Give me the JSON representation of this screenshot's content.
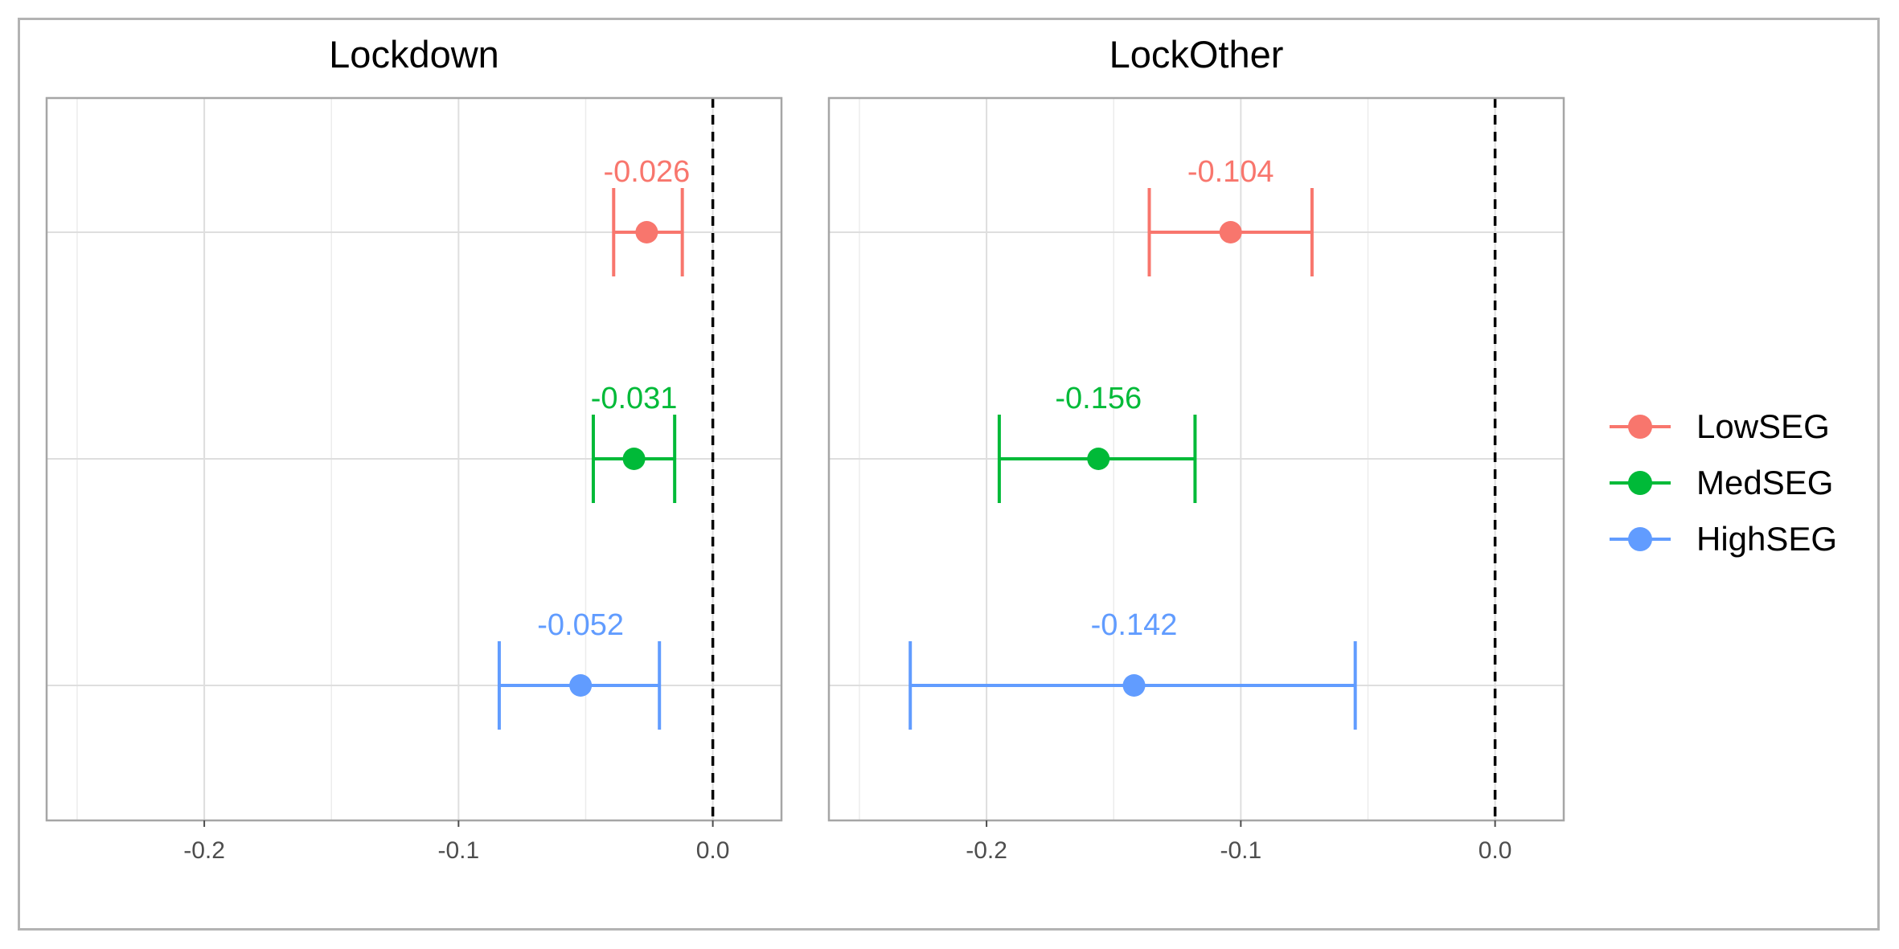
{
  "chart_data": {
    "type": "dot-errorbar",
    "legend_position": "right",
    "grid": true,
    "reference_line": {
      "x": 0.0,
      "style": "dashed",
      "color": "#000000"
    },
    "xlim": [
      -0.262,
      0.027
    ],
    "xticks": [
      -0.2,
      -0.1,
      0.0
    ],
    "xtick_labels": [
      "-0.2",
      "-0.1",
      "0.0"
    ],
    "series": [
      {
        "name": "LowSEG",
        "color": "#F8766D"
      },
      {
        "name": "MedSEG",
        "color": "#00BA38"
      },
      {
        "name": "HighSEG",
        "color": "#619CFF"
      }
    ],
    "panels": [
      {
        "title": "Lockdown",
        "points": [
          {
            "series": "LowSEG",
            "estimate": -0.026,
            "lower": -0.039,
            "upper": -0.012,
            "label": "-0.026"
          },
          {
            "series": "MedSEG",
            "estimate": -0.031,
            "lower": -0.047,
            "upper": -0.015,
            "label": "-0.031"
          },
          {
            "series": "HighSEG",
            "estimate": -0.052,
            "lower": -0.084,
            "upper": -0.021,
            "label": "-0.052"
          }
        ]
      },
      {
        "title": "LockOther",
        "points": [
          {
            "series": "LowSEG",
            "estimate": -0.104,
            "lower": -0.136,
            "upper": -0.072,
            "label": "-0.104"
          },
          {
            "series": "MedSEG",
            "estimate": -0.156,
            "lower": -0.195,
            "upper": -0.118,
            "label": "-0.156"
          },
          {
            "series": "HighSEG",
            "estimate": -0.142,
            "lower": -0.23,
            "upper": -0.055,
            "label": "-0.142"
          }
        ]
      }
    ]
  }
}
